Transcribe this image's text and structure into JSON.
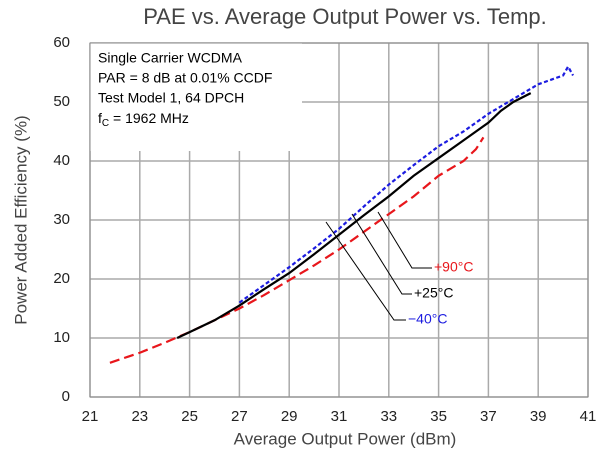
{
  "chart_data": {
    "type": "line",
    "title": "PAE vs. Average Output Power vs. Temp.",
    "x_label": "Average Output Power (dBm)",
    "y_label": "Power Added Efficiency (%)",
    "annotation": [
      "Single Carrier WCDMA",
      "PAR = 8 dB at 0.01% CCDF",
      "Test Model 1, 64 DPCH",
      [
        "f",
        "C",
        " = 1962 MHz"
      ]
    ],
    "xlim": [
      21,
      41
    ],
    "xticks": [
      21,
      23,
      25,
      27,
      29,
      31,
      33,
      35,
      37,
      39,
      41
    ],
    "ylim": [
      0,
      60
    ],
    "yticks": [
      0,
      10,
      20,
      30,
      40,
      50,
      60
    ],
    "grid": true,
    "series": [
      {
        "name": "+90°C",
        "color": "#e8161b",
        "line_style": "dashed",
        "x": [
          21.8,
          23,
          24,
          25,
          26,
          27,
          28,
          29,
          30,
          31,
          32,
          33,
          34,
          35,
          36,
          36.5,
          36.8
        ],
        "values": [
          5.8,
          7.5,
          9.2,
          11,
          13,
          15,
          17.3,
          19.8,
          22.3,
          25,
          28,
          31,
          34,
          37.5,
          40,
          42,
          44
        ]
      },
      {
        "name": "+25°C",
        "color": "#000000",
        "line_style": "solid",
        "x": [
          24.5,
          25,
          26,
          27,
          28,
          29,
          30,
          31,
          32,
          33,
          34,
          35,
          36,
          37,
          37.5,
          38,
          38.7
        ],
        "values": [
          10,
          11,
          13,
          15.5,
          18.3,
          21,
          24.2,
          27.5,
          30.8,
          34,
          37.5,
          40.5,
          43.5,
          46.5,
          48.5,
          50,
          51.5
        ]
      },
      {
        "name": "−40°C",
        "color": "#1c1ce0",
        "line_style": "dotted",
        "x": [
          27,
          28,
          29,
          30,
          31,
          32,
          33,
          34,
          35,
          36,
          37,
          38,
          39,
          40,
          40.2,
          40.4
        ],
        "values": [
          16,
          19,
          22,
          25.2,
          28.5,
          32.3,
          36,
          39.3,
          42.5,
          45,
          48,
          50.5,
          53,
          54.5,
          56,
          54.5
        ]
      }
    ]
  }
}
